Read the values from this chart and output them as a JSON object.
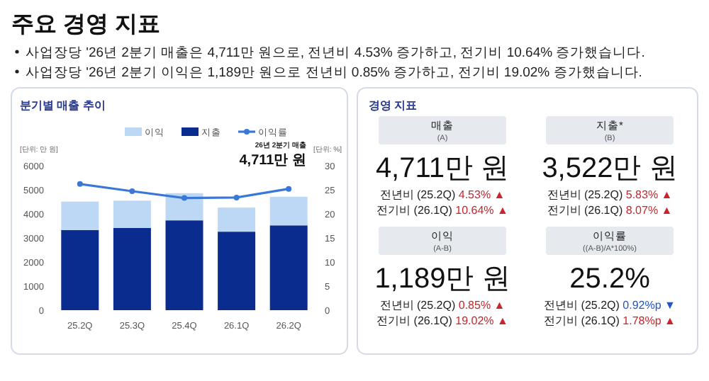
{
  "chart_data": [
    {
      "type": "other",
      "title": "주요 경영 지표",
      "annotations": [
        "사업장당 '26년 2분기 매출은 4,711만 원으로, 전년비 4.53% 증가하고, 전기비 10.64% 증가했습니다.",
        "사업장당 '26년 2분기 이익은 1,189만 원으로 전년비 0.85% 증가하고, 전기비 19.02% 증가했습니다."
      ]
    },
    {
      "type": "bar",
      "stacked": true,
      "title": "분기별 매출 추이",
      "ylabel": "[단위: 만 원]",
      "y2label": "[단위: %]",
      "categories": [
        "25.2Q",
        "25.3Q",
        "25.4Q",
        "26.1Q",
        "26.2Q"
      ],
      "series": [
        {
          "name": "지출",
          "color": "#0b2c8f",
          "values": [
            3330,
            3420,
            3730,
            3260,
            3522
          ]
        },
        {
          "name": "이익",
          "color": "#bdd8f4",
          "values": [
            1180,
            1130,
            1130,
            1000,
            1189
          ]
        },
        {
          "name": "이익률",
          "type": "line",
          "axis": "y2",
          "color": "#3a78d8",
          "marker": "circle",
          "values": [
            26.2,
            24.7,
            23.3,
            23.4,
            25.2
          ]
        }
      ],
      "ylim": [
        0,
        6000
      ],
      "yticks": [
        0,
        1000,
        2000,
        3000,
        4000,
        5000,
        6000
      ],
      "y2lim": [
        0,
        30
      ],
      "y2ticks": [
        0,
        5,
        10,
        15,
        20,
        25,
        30
      ],
      "legend": "top",
      "annotations": [
        "26년 2분기 매출",
        "4,711만 원"
      ]
    },
    {
      "type": "other",
      "title": "경영 지표",
      "annotations": [
        "매출",
        "(A)",
        "4,711만 원",
        "전년비 (25.2Q) 4.53% ▲",
        "전기비 (26.1Q) 10.64% ▲",
        "지출*",
        "(B)",
        "3,522만 원",
        "전년비 (25.2Q) 5.83% ▲",
        "전기비 (26.1Q) 8.07% ▲",
        "이익",
        "(A-B)",
        "1,189만 원",
        "전년비 (25.2Q) 0.85% ▲",
        "전기비 (26.1Q) 19.02% ▲",
        "이익률",
        "((A-B)/A*100%)",
        "25.2%",
        "전년비 (25.2Q) 0.92%p ▼",
        "전기비 (26.1Q) 1.78%p ▲"
      ]
    }
  ]
}
